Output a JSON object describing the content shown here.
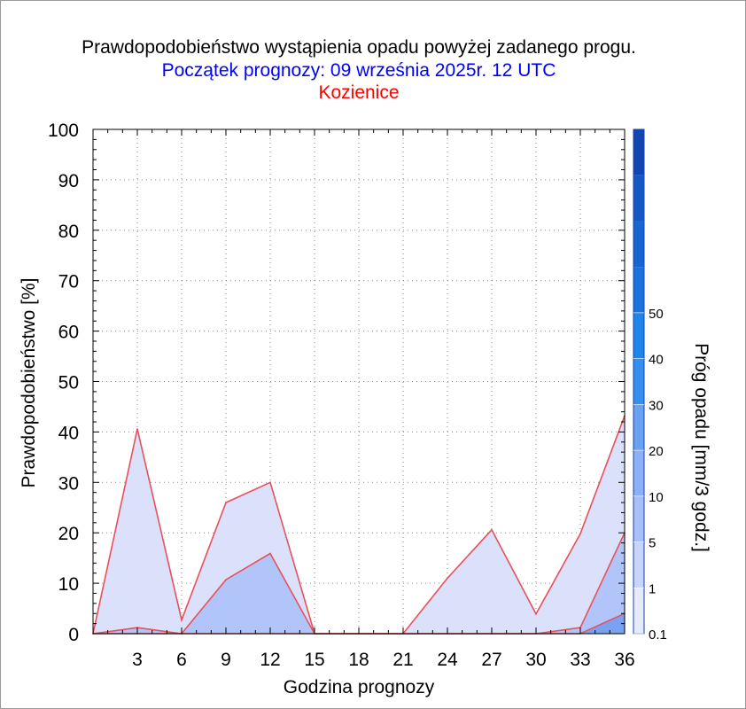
{
  "header": {
    "title": "Prawdopodobieństwo wystąpienia opadu powyżej zadanego progu.",
    "subtitle": "Początek prognozy: 09 września 2025r. 12 UTC",
    "location": "Kozienice",
    "title_color": "#000000",
    "subtitle_color": "#0000ff",
    "location_color": "#ff0000"
  },
  "chart_data": {
    "type": "area",
    "xlabel": "Godzina prognozy",
    "ylabel": "Prawdopodobieństwo [%]",
    "xlim": [
      0,
      36
    ],
    "ylim": [
      0,
      100
    ],
    "x_ticks": [
      3,
      6,
      9,
      12,
      15,
      18,
      21,
      24,
      27,
      30,
      33,
      36
    ],
    "y_ticks": [
      0,
      10,
      20,
      30,
      40,
      50,
      60,
      70,
      80,
      90,
      100
    ],
    "grid": true,
    "x": [
      0,
      3,
      6,
      9,
      12,
      15,
      18,
      21,
      24,
      27,
      30,
      33,
      36
    ],
    "series": [
      {
        "threshold": "0.1",
        "color": "#dbe1fa",
        "values": [
          0,
          40.6,
          2.7,
          26,
          30,
          0,
          0,
          0,
          11,
          20.6,
          3.9,
          19.8,
          43.2
        ]
      },
      {
        "threshold": "1",
        "color": "#b2c5fa",
        "values": [
          0,
          1.2,
          0,
          10.7,
          15.9,
          0,
          0,
          0,
          0,
          0,
          0,
          1.2,
          20
        ]
      },
      {
        "threshold": "5",
        "color": "#7aa2f2",
        "values": [
          0,
          0,
          0,
          0,
          0,
          0,
          0,
          0,
          0,
          0,
          0,
          0,
          4
        ]
      }
    ],
    "line_color": "#e8505a",
    "colorbar": {
      "label": "Próg opadu [mm/3 godz.]",
      "tick_labels": [
        "0.1",
        "1",
        "5",
        "10",
        "20",
        "30",
        "40",
        "50"
      ],
      "colors": [
        "#e6ebfc",
        "#c8d5fb",
        "#a8c0fa",
        "#8bb0f6",
        "#6aa2f2",
        "#3390f0",
        "#1e86ea",
        "#1874dc",
        "#1666d2",
        "#1458c4",
        "#0f46b2"
      ]
    }
  }
}
